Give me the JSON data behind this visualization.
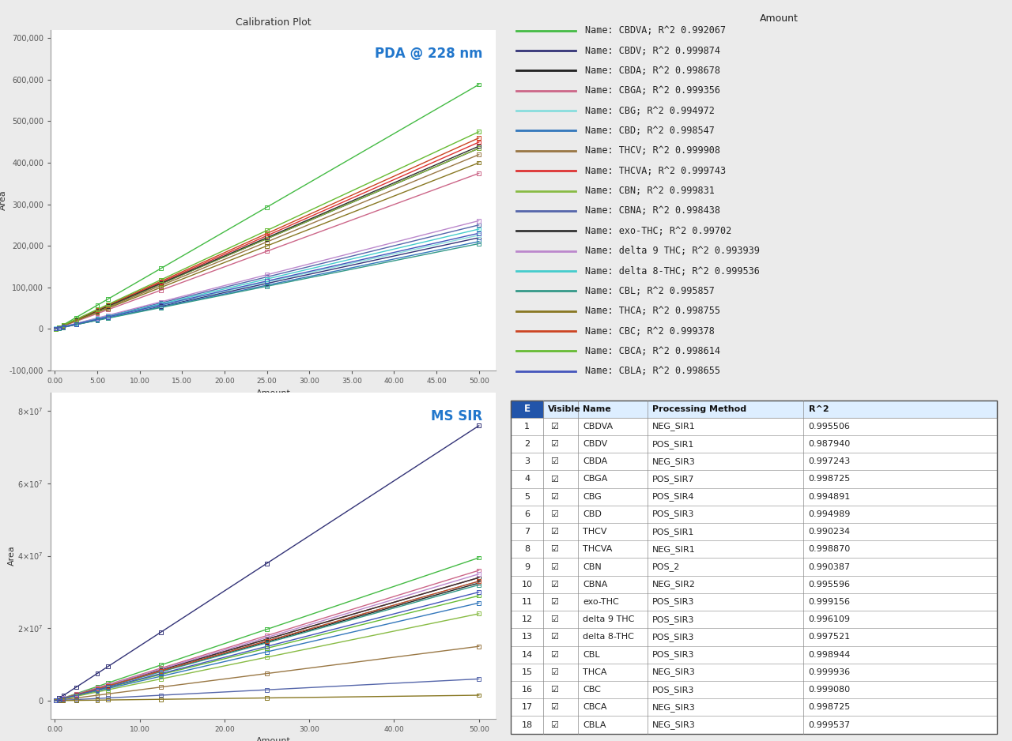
{
  "title": "Calibration Plot",
  "x_points": [
    0.1,
    0.5,
    1.0,
    2.5,
    5.0,
    6.25,
    12.5,
    25.0,
    50.0
  ],
  "pda_compounds": [
    {
      "name": "CBDVA",
      "r2": 0.992067,
      "slope": 11800,
      "intercept": -2000,
      "color": "#44BB44"
    },
    {
      "name": "CBDV",
      "r2": 0.999874,
      "slope": 4400,
      "intercept": -500,
      "color": "#333377"
    },
    {
      "name": "CBDA",
      "r2": 0.998678,
      "slope": 8700,
      "intercept": -500,
      "color": "#222222"
    },
    {
      "name": "CBGA",
      "r2": 0.999356,
      "slope": 7500,
      "intercept": -600,
      "color": "#CC6688"
    },
    {
      "name": "CBG",
      "r2": 0.994972,
      "slope": 4500,
      "intercept": 500,
      "color": "#88DDDD"
    },
    {
      "name": "CBD",
      "r2": 0.998547,
      "slope": 4200,
      "intercept": 200,
      "color": "#3377BB"
    },
    {
      "name": "THCV",
      "r2": 0.999908,
      "slope": 8400,
      "intercept": -600,
      "color": "#997744"
    },
    {
      "name": "THCVA",
      "r2": 0.999743,
      "slope": 9000,
      "intercept": -700,
      "color": "#DD3333"
    },
    {
      "name": "CBN",
      "r2": 0.999831,
      "slope": 8700,
      "intercept": -300,
      "color": "#88BB44"
    },
    {
      "name": "CBNA",
      "r2": 0.998438,
      "slope": 5000,
      "intercept": 100,
      "color": "#5566AA"
    },
    {
      "name": "exo-THC",
      "r2": 0.99702,
      "slope": 8800,
      "intercept": -400,
      "color": "#333333"
    },
    {
      "name": "delta 9 THC",
      "r2": 0.993939,
      "slope": 5200,
      "intercept": 300,
      "color": "#BB88CC"
    },
    {
      "name": "delta 8-THC",
      "r2": 0.999536,
      "slope": 4800,
      "intercept": 200,
      "color": "#44CCCC"
    },
    {
      "name": "CBL",
      "r2": 0.995857,
      "slope": 4100,
      "intercept": 100,
      "color": "#339988"
    },
    {
      "name": "THCA",
      "r2": 0.998755,
      "slope": 8000,
      "intercept": -200,
      "color": "#887722"
    },
    {
      "name": "CBC",
      "r2": 0.999378,
      "slope": 9200,
      "intercept": -500,
      "color": "#CC4422"
    },
    {
      "name": "CBCA",
      "r2": 0.998614,
      "slope": 9500,
      "intercept": -600,
      "color": "#66BB33"
    },
    {
      "name": "CBLA",
      "r2": 0.998655,
      "slope": 4600,
      "intercept": 200,
      "color": "#4455BB"
    }
  ],
  "ms_compounds": [
    {
      "name": "CBDVA",
      "r2": 0.995506,
      "method": "NEG_SIR1",
      "slope": 790000,
      "intercept": -50000,
      "color": "#44BB44"
    },
    {
      "name": "CBDV",
      "r2": 0.98794,
      "method": "POS_SIR1",
      "slope": 1520000,
      "intercept": -100000,
      "color": "#333377"
    },
    {
      "name": "CBDA",
      "r2": 0.997243,
      "method": "NEG_SIR3",
      "slope": 650000,
      "intercept": -30000,
      "color": "#222222"
    },
    {
      "name": "CBGA",
      "r2": 0.998725,
      "method": "POS_SIR7",
      "slope": 720000,
      "intercept": -40000,
      "color": "#CC6688"
    },
    {
      "name": "CBG",
      "r2": 0.994891,
      "method": "POS_SIR4",
      "slope": 680000,
      "intercept": -35000,
      "color": "#88DDDD"
    },
    {
      "name": "CBD",
      "r2": 0.994989,
      "method": "POS_SIR3",
      "slope": 540000,
      "intercept": -20000,
      "color": "#3377BB"
    },
    {
      "name": "THCV",
      "r2": 0.990234,
      "method": "POS_SIR1",
      "slope": 300000,
      "intercept": -10000,
      "color": "#997744"
    },
    {
      "name": "THCVA",
      "r2": 0.99887,
      "method": "NEG_SIR1",
      "slope": 680000,
      "intercept": -32000,
      "color": "#DD3333"
    },
    {
      "name": "CBN",
      "r2": 0.990387,
      "method": "POS_2",
      "slope": 480000,
      "intercept": -5000,
      "color": "#88BB44"
    },
    {
      "name": "CBNA",
      "r2": 0.995596,
      "method": "NEG_SIR2",
      "slope": 120000,
      "intercept": -3000,
      "color": "#5566AA"
    },
    {
      "name": "exo-THC",
      "r2": 0.999156,
      "method": "POS_SIR3",
      "slope": 680000,
      "intercept": -35000,
      "color": "#333333"
    },
    {
      "name": "delta 9 THC",
      "r2": 0.996109,
      "method": "POS_SIR3",
      "slope": 700000,
      "intercept": -36000,
      "color": "#BB88CC"
    },
    {
      "name": "delta 8-THC",
      "r2": 0.997521,
      "method": "POS_SIR3",
      "slope": 660000,
      "intercept": -33000,
      "color": "#44CCCC"
    },
    {
      "name": "CBL",
      "r2": 0.998944,
      "method": "POS_SIR3",
      "slope": 640000,
      "intercept": -32000,
      "color": "#339988"
    },
    {
      "name": "THCA",
      "r2": 0.999936,
      "method": "NEG_SIR3",
      "slope": 30000,
      "intercept": -1000,
      "color": "#887722"
    },
    {
      "name": "CBC",
      "r2": 0.99908,
      "method": "POS_SIR3",
      "slope": 660000,
      "intercept": -33000,
      "color": "#CC4422"
    },
    {
      "name": "CBCA",
      "r2": 0.998725,
      "method": "NEG_SIR3",
      "slope": 580000,
      "intercept": -28000,
      "color": "#66BB33"
    },
    {
      "name": "CBLA",
      "r2": 0.999537,
      "method": "NEG_SIR3",
      "slope": 600000,
      "intercept": -30000,
      "color": "#4455BB"
    }
  ],
  "bg_color": "#EBEBEB",
  "plot_bg": "#FFFFFF",
  "legend_title_fontsize": 9,
  "legend_entry_fontsize": 8.5,
  "table_header_fontsize": 8,
  "table_data_fontsize": 8
}
